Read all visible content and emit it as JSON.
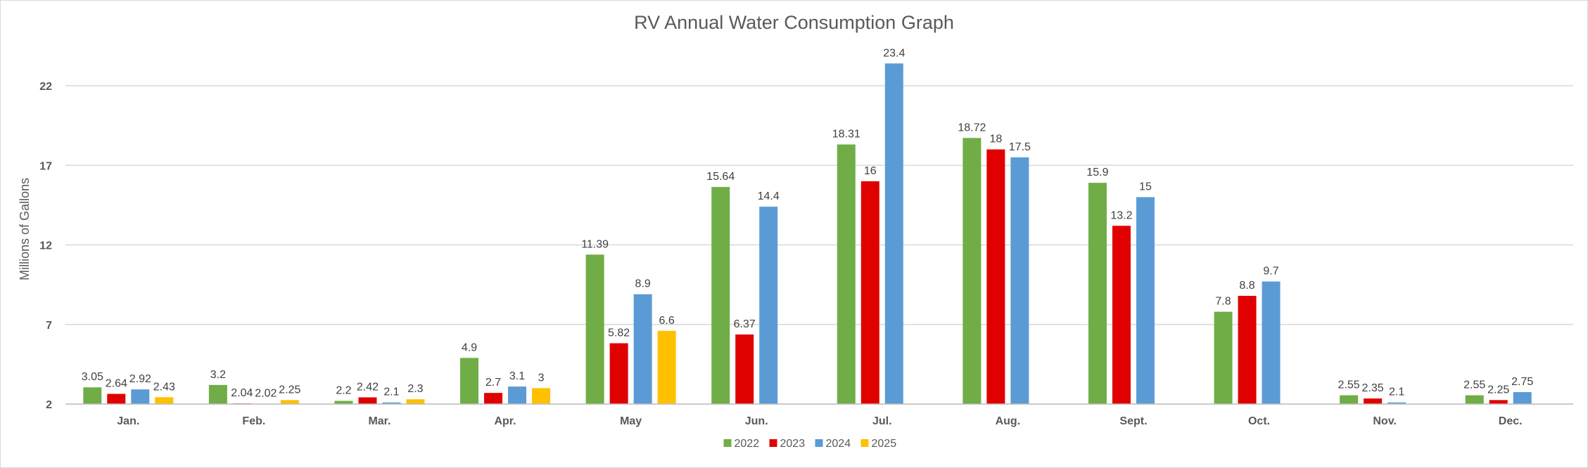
{
  "chart_data": {
    "type": "bar",
    "title": "RV Annual Water Consumption Graph",
    "xlabel": "",
    "ylabel": "Millions of Gallons",
    "ylim": [
      2,
      24.5
    ],
    "yticks": [
      2,
      7,
      12,
      17,
      22
    ],
    "grid": true,
    "legend_position": "bottom",
    "categories": [
      "Jan.",
      "Feb.",
      "Mar.",
      "Apr.",
      "May",
      "Jun.",
      "Jul.",
      "Aug.",
      "Sept.",
      "Oct.",
      "Nov.",
      "Dec."
    ],
    "series": [
      {
        "name": "2022",
        "color": "#70ad47",
        "values": [
          3.05,
          3.2,
          2.2,
          4.9,
          11.39,
          15.64,
          18.31,
          18.72,
          15.9,
          7.8,
          2.55,
          2.55
        ],
        "labels": [
          "3.05",
          "3.2",
          "2.2",
          "4.9",
          "11.39",
          "15.64",
          "18.31",
          "18.72",
          "15.9",
          "7.8",
          "2.55",
          "2.55"
        ]
      },
      {
        "name": "2023",
        "color": "#e00000",
        "values": [
          2.64,
          2.04,
          2.42,
          2.7,
          5.82,
          6.37,
          16,
          18,
          13.2,
          8.8,
          2.35,
          2.25
        ],
        "labels": [
          "2.64",
          "2.04",
          "2.42",
          "2.7",
          "5.82",
          "6.37",
          "16",
          "18",
          "13.2",
          "8.8",
          "2.35",
          "2.25"
        ]
      },
      {
        "name": "2024",
        "color": "#5b9bd5",
        "values": [
          2.92,
          2.02,
          2.1,
          3.1,
          8.9,
          14.4,
          23.4,
          17.5,
          15,
          9.7,
          2.1,
          2.75
        ],
        "labels": [
          "2.92",
          "2.02",
          "2.1",
          "3.1",
          "8.9",
          "14.4",
          "23.4",
          "17.5",
          "15",
          "9.7",
          "2.1",
          "2.75"
        ]
      },
      {
        "name": "2025",
        "color": "#ffc000",
        "values": [
          2.43,
          2.25,
          2.3,
          3,
          6.6,
          null,
          null,
          null,
          null,
          null,
          null,
          null
        ],
        "labels": [
          "2.43",
          "2.25",
          "2.3",
          "3",
          "6.6",
          "",
          "",
          "",
          "",
          "",
          "",
          ""
        ]
      }
    ]
  }
}
